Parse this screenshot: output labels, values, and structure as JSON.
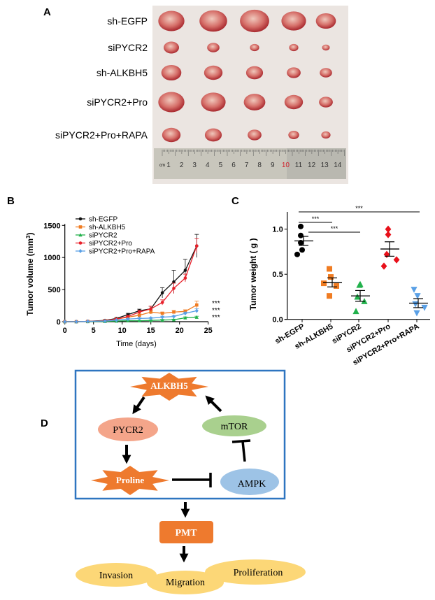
{
  "panel_labels": {
    "a": "A",
    "b": "B",
    "c": "C",
    "d": "D"
  },
  "panel_a": {
    "row_labels": [
      "sh-EGFP",
      "siPYCR2",
      "sh-ALKBH5",
      "siPYCR2+Pro",
      "siPYCR2+Pro+RAPA"
    ],
    "ruler": {
      "unit": "cm",
      "numbers": [
        "1",
        "2",
        "3",
        "4",
        "5",
        "6",
        "7",
        "8",
        "9",
        "10",
        "11",
        "12",
        "13",
        "14"
      ]
    }
  },
  "chart_data": [
    {
      "type": "line",
      "title": "",
      "xlabel": "Time (days)",
      "ylabel": "Tumor volume (mm",
      "ylabel_sup": "3",
      "ylabel_end": ")",
      "xlim": [
        0,
        25
      ],
      "ylim": [
        0,
        1500
      ],
      "xticks": [
        "0",
        "5",
        "10",
        "15",
        "20",
        "25"
      ],
      "yticks": [
        "0",
        "500",
        "1000",
        "1500"
      ],
      "legend_position": "top-left",
      "x": [
        0,
        2,
        4,
        7,
        9,
        11,
        13,
        15,
        17,
        19,
        21,
        23
      ],
      "series": [
        {
          "name": "sh-EGFP",
          "color": "#111111",
          "marker": "circle",
          "values": [
            0,
            0,
            5,
            20,
            50,
            110,
            170,
            200,
            450,
            620,
            800,
            1180
          ],
          "error": [
            0,
            0,
            5,
            10,
            15,
            20,
            25,
            40,
            80,
            180,
            170,
            180
          ]
        },
        {
          "name": "sh-ALKBH5",
          "color": "#f07c22",
          "marker": "square",
          "values": [
            0,
            0,
            5,
            15,
            40,
            70,
            100,
            150,
            130,
            150,
            160,
            260
          ],
          "error": [
            0,
            0,
            3,
            5,
            10,
            15,
            20,
            30,
            20,
            25,
            25,
            60
          ]
        },
        {
          "name": "siPYCR2",
          "color": "#22b14c",
          "marker": "triangle",
          "values": [
            0,
            0,
            2,
            5,
            10,
            15,
            15,
            20,
            25,
            30,
            60,
            70
          ],
          "error": [
            0,
            0,
            1,
            2,
            3,
            5,
            5,
            8,
            10,
            10,
            15,
            15
          ]
        },
        {
          "name": "siPYCR2+Pro",
          "color": "#e8202a",
          "marker": "circle",
          "values": [
            0,
            0,
            5,
            15,
            40,
            80,
            150,
            200,
            300,
            520,
            680,
            1180
          ],
          "error": [
            0,
            0,
            3,
            5,
            10,
            15,
            25,
            40,
            40,
            80,
            60,
            110
          ]
        },
        {
          "name": "siPYCR2+Pro+RAPA",
          "color": "#5aa0e6",
          "marker": "diamond",
          "values": [
            0,
            0,
            5,
            10,
            25,
            40,
            50,
            55,
            70,
            80,
            130,
            170
          ],
          "error": [
            0,
            0,
            2,
            3,
            5,
            8,
            10,
            10,
            15,
            15,
            20,
            30
          ]
        }
      ],
      "annotations": [
        "***",
        "***",
        "***"
      ]
    },
    {
      "type": "scatter",
      "title": "",
      "xlabel": "",
      "ylabel": "Tumor weight ( g )",
      "ylim": [
        0,
        1.2
      ],
      "yticks": [
        "0.0",
        "0.5",
        "1.0"
      ],
      "categories": [
        "sh-EGFP",
        "sh-ALKBH5",
        "siPYCR2",
        "siPYCR2+Pro",
        "siPYCR2+Pro+RAPA"
      ],
      "series": [
        {
          "name": "sh-EGFP",
          "color": "#000000",
          "marker": "circle",
          "points": [
            1.03,
            0.93,
            0.85,
            0.77,
            0.72
          ],
          "mean": 0.87,
          "sem": 0.05
        },
        {
          "name": "sh-ALKBH5",
          "color": "#f07c22",
          "marker": "square",
          "points": [
            0.56,
            0.47,
            0.4,
            0.37,
            0.26
          ],
          "mean": 0.41,
          "sem": 0.05
        },
        {
          "name": "siPYCR2",
          "color": "#22b14c",
          "marker": "triangle",
          "points": [
            0.39,
            0.38,
            0.25,
            0.2,
            0.09
          ],
          "mean": 0.26,
          "sem": 0.06
        },
        {
          "name": "siPYCR2+Pro",
          "color": "#e8101a",
          "marker": "diamond",
          "points": [
            1.0,
            0.94,
            0.72,
            0.66,
            0.59
          ],
          "mean": 0.78,
          "sem": 0.08
        },
        {
          "name": "siPYCR2+Pro+RAPA",
          "color": "#5aa0e6",
          "marker": "triangle-down",
          "points": [
            0.33,
            0.26,
            0.17,
            0.13,
            0.07
          ],
          "mean": 0.18,
          "sem": 0.05
        }
      ],
      "significance": [
        {
          "from": "sh-EGFP",
          "to": "siPYCR2+Pro+RAPA",
          "label": "***"
        },
        {
          "from": "sh-EGFP",
          "to": "sh-ALKBH5",
          "label": "***"
        },
        {
          "from": "sh-EGFP",
          "to": "siPYCR2",
          "label": "***"
        }
      ]
    }
  ],
  "panel_d": {
    "nodes": {
      "alkbh5": "ALKBH5",
      "pycr2": "PYCR2",
      "mtor": "mTOR",
      "proline": "Proline",
      "ampk": "AMPK",
      "pmt": "PMT",
      "invasion": "Invasion",
      "migration": "Migration",
      "proliferation": "Proliferation"
    },
    "colors": {
      "box": "#2e75c0",
      "star": "#ee7a2e",
      "pycr2": "#f4a58a",
      "mtor": "#a9d08e",
      "ampk": "#9dc3e6",
      "outcome": "#fcd777"
    }
  }
}
